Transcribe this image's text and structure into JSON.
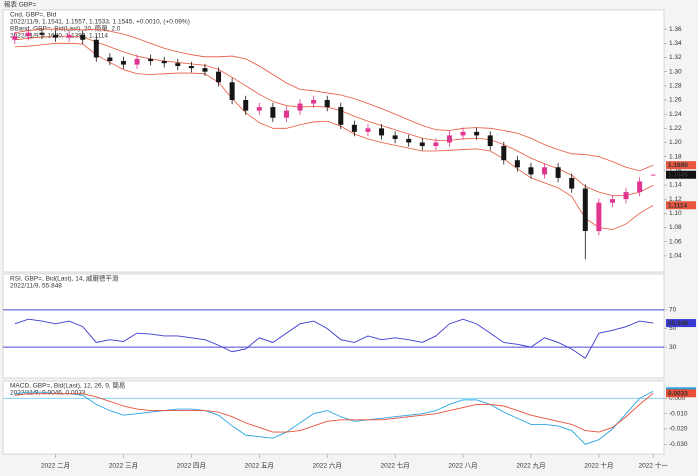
{
  "window_title": "報表 GBP=",
  "chart_data": [
    {
      "type": "candlestick",
      "title": "Cnd, GBP=, Bid",
      "subtitle": "2022/11/9, 1.1541, 1.1557, 1.1533, 1.1545, +0.0010, (+0.09%)",
      "overlay_title": "BBand, GBP=, Bid(Last), 20, 簡單, 2.0",
      "overlay_subtitle": "2022/11/9, 1.1680, 1.1397, 1.1114",
      "categories": [
        null,
        null,
        null,
        null,
        null,
        null,
        null,
        null,
        null,
        null,
        null,
        null,
        null,
        null,
        null,
        null,
        null,
        null,
        null,
        null,
        null,
        null,
        null,
        null,
        null,
        null,
        null,
        null,
        null,
        null,
        null,
        null,
        null,
        null,
        null,
        null,
        null,
        null,
        null,
        null,
        null,
        null,
        null,
        null,
        null,
        null,
        null,
        null
      ],
      "open": [
        1.345,
        1.35,
        1.355,
        1.352,
        1.348,
        1.352,
        1.345,
        1.32,
        1.315,
        1.31,
        1.318,
        1.315,
        1.312,
        1.308,
        1.305,
        1.3,
        1.285,
        1.26,
        1.245,
        1.25,
        1.235,
        1.245,
        1.255,
        1.26,
        1.25,
        1.225,
        1.215,
        1.22,
        1.21,
        1.205,
        1.2,
        1.195,
        1.2,
        1.21,
        1.215,
        1.21,
        1.195,
        1.175,
        1.165,
        1.155,
        1.165,
        1.15,
        1.135,
        1.075,
        1.115,
        1.12,
        1.13,
        1.1541
      ],
      "high": [
        1.356,
        1.361,
        1.361,
        1.358,
        1.358,
        1.358,
        1.351,
        1.326,
        1.321,
        1.324,
        1.324,
        1.321,
        1.318,
        1.314,
        1.311,
        1.306,
        1.291,
        1.266,
        1.256,
        1.256,
        1.251,
        1.261,
        1.266,
        1.266,
        1.256,
        1.231,
        1.226,
        1.226,
        1.216,
        1.211,
        1.206,
        1.206,
        1.216,
        1.221,
        1.221,
        1.216,
        1.201,
        1.181,
        1.171,
        1.171,
        1.171,
        1.156,
        1.141,
        1.121,
        1.126,
        1.136,
        1.151,
        1.1557
      ],
      "low": [
        1.339,
        1.344,
        1.346,
        1.342,
        1.342,
        1.339,
        1.314,
        1.309,
        1.304,
        1.304,
        1.309,
        1.306,
        1.302,
        1.299,
        1.294,
        1.279,
        1.254,
        1.239,
        1.239,
        1.229,
        1.229,
        1.239,
        1.249,
        1.244,
        1.219,
        1.209,
        1.209,
        1.204,
        1.199,
        1.194,
        1.189,
        1.189,
        1.194,
        1.204,
        1.204,
        1.189,
        1.169,
        1.159,
        1.149,
        1.149,
        1.144,
        1.129,
        1.035,
        1.069,
        1.109,
        1.114,
        1.124,
        1.1533
      ],
      "close": [
        1.35,
        1.355,
        1.352,
        1.348,
        1.352,
        1.345,
        1.32,
        1.315,
        1.31,
        1.318,
        1.315,
        1.312,
        1.308,
        1.305,
        1.3,
        1.285,
        1.26,
        1.245,
        1.25,
        1.235,
        1.245,
        1.255,
        1.26,
        1.25,
        1.225,
        1.215,
        1.22,
        1.21,
        1.205,
        1.2,
        1.195,
        1.2,
        1.21,
        1.215,
        1.21,
        1.195,
        1.175,
        1.165,
        1.155,
        1.165,
        1.15,
        1.135,
        1.075,
        1.115,
        1.12,
        1.13,
        1.145,
        1.1545
      ],
      "up_color": "#e0358f",
      "down_color": "#151515",
      "bands": {
        "color": "#e8563f",
        "upper": [
          1.355,
          1.358,
          1.36,
          1.36,
          1.36,
          1.359,
          1.36,
          1.357,
          1.353,
          1.347,
          1.34,
          1.333,
          1.328,
          1.324,
          1.321,
          1.321,
          1.322,
          1.318,
          1.308,
          1.296,
          1.284,
          1.275,
          1.273,
          1.27,
          1.267,
          1.262,
          1.255,
          1.248,
          1.24,
          1.232,
          1.224,
          1.218,
          1.217,
          1.22,
          1.221,
          1.22,
          1.217,
          1.213,
          1.206,
          1.197,
          1.19,
          1.184,
          1.183,
          1.18,
          1.173,
          1.165,
          1.16,
          1.168
        ],
        "middle": [
          1.345,
          1.347,
          1.349,
          1.35,
          1.35,
          1.349,
          1.342,
          1.335,
          1.328,
          1.322,
          1.318,
          1.315,
          1.313,
          1.311,
          1.309,
          1.303,
          1.292,
          1.28,
          1.268,
          1.258,
          1.252,
          1.25,
          1.251,
          1.25,
          1.245,
          1.237,
          1.23,
          1.224,
          1.218,
          1.212,
          1.206,
          1.203,
          1.203,
          1.205,
          1.206,
          1.204,
          1.197,
          1.188,
          1.178,
          1.17,
          1.163,
          1.154,
          1.138,
          1.13,
          1.125,
          1.125,
          1.13,
          1.1397
        ],
        "lower": [
          1.335,
          1.336,
          1.338,
          1.34,
          1.34,
          1.339,
          1.324,
          1.313,
          1.303,
          1.297,
          1.296,
          1.297,
          1.298,
          1.298,
          1.297,
          1.285,
          1.262,
          1.242,
          1.228,
          1.22,
          1.22,
          1.225,
          1.229,
          1.23,
          1.223,
          1.212,
          1.205,
          1.2,
          1.196,
          1.192,
          1.188,
          1.188,
          1.189,
          1.19,
          1.191,
          1.188,
          1.177,
          1.163,
          1.15,
          1.143,
          1.136,
          1.124,
          1.093,
          1.08,
          1.077,
          1.085,
          1.1,
          1.1114
        ]
      },
      "last_labels": {
        "upper": "1.1680",
        "close": "1.1545",
        "lower": "1.1114"
      },
      "ylim": [
        1.02,
        1.38
      ],
      "yticks": [
        1.04,
        1.06,
        1.08,
        {
          "value": 1.1,
          "label": "1.10"
        },
        1.12,
        1.14,
        1.16,
        1.18,
        {
          "value": 1.2,
          "label": "1.20"
        },
        1.22,
        1.24,
        1.26,
        1.28,
        {
          "value": 1.3,
          "label": "1.30"
        },
        1.32,
        1.34,
        1.36
      ]
    },
    {
      "type": "line",
      "title": "RSI, GBP=, Bid(Last), 14, 威爾德平滑",
      "subtitle": "2022/11/9, 55.848",
      "categories": [
        null,
        null,
        null,
        null,
        null,
        null,
        null,
        null,
        null,
        null,
        null,
        null,
        null,
        null,
        null,
        null,
        null,
        null,
        null,
        null,
        null,
        null,
        null,
        null,
        null,
        null,
        null,
        null,
        null,
        null,
        null,
        null,
        null,
        null,
        null,
        null,
        null,
        null,
        null,
        null,
        null,
        null,
        null,
        null,
        null,
        null,
        null,
        null
      ],
      "series": [
        {
          "color": "#3a3ad0",
          "values": [
            55,
            60,
            58,
            55,
            58,
            52,
            35,
            38,
            36,
            45,
            44,
            42,
            42,
            40,
            38,
            32,
            25,
            28,
            40,
            35,
            45,
            55,
            58,
            50,
            38,
            35,
            42,
            38,
            40,
            38,
            35,
            42,
            55,
            60,
            55,
            45,
            35,
            33,
            30,
            40,
            35,
            28,
            18,
            45,
            48,
            52,
            58,
            55.848
          ]
        }
      ],
      "levels": [
        70,
        30
      ],
      "level_color": "#4a4ad8",
      "ylim": [
        0,
        100
      ],
      "yticks": [
        30,
        50,
        70
      ]
    },
    {
      "type": "line",
      "title": "MACD, GBP=, Bid(Last), 12, 26, 9, 簡易",
      "subtitle": "2022/11/9, 0.0046, 0.0033",
      "categories": [
        null,
        null,
        null,
        null,
        null,
        null,
        null,
        null,
        null,
        null,
        null,
        null,
        null,
        null,
        null,
        null,
        null,
        null,
        null,
        null,
        null,
        null,
        null,
        null,
        null,
        null,
        null,
        null,
        null,
        null,
        null,
        null,
        null,
        null,
        null,
        null,
        null,
        null,
        null,
        null,
        null,
        null,
        null,
        null,
        null,
        null,
        null,
        null
      ],
      "xticks": [
        {
          "value": 3,
          "label": "2022 二月"
        },
        {
          "value": 8,
          "label": "2022 三月"
        },
        {
          "value": 13,
          "label": "2022 四月"
        },
        {
          "value": 18,
          "label": "2022 五月"
        },
        {
          "value": 23,
          "label": "2022 六月"
        },
        {
          "value": 28,
          "label": "2022 七月"
        },
        {
          "value": 33,
          "label": "2022 八月"
        },
        {
          "value": 38,
          "label": "2022 九月"
        },
        {
          "value": 43,
          "label": "2022 十月"
        },
        {
          "value": 47,
          "label": "2022 十一"
        }
      ],
      "series": [
        {
          "color": "#2aa6e2",
          "values": [
            0.003,
            0.004,
            0.004,
            0.003,
            0.003,
            0.002,
            -0.004,
            -0.008,
            -0.011,
            -0.01,
            -0.009,
            -0.008,
            -0.007,
            -0.007,
            -0.008,
            -0.011,
            -0.018,
            -0.024,
            -0.025,
            -0.026,
            -0.022,
            -0.016,
            -0.01,
            -0.008,
            -0.012,
            -0.015,
            -0.014,
            -0.013,
            -0.012,
            -0.011,
            -0.01,
            -0.008,
            -0.004,
            -0.001,
            -0.001,
            -0.004,
            -0.009,
            -0.013,
            -0.017,
            -0.017,
            -0.018,
            -0.021,
            -0.03,
            -0.027,
            -0.02,
            -0.01,
            0,
            0.0046
          ]
        },
        {
          "color": "#e8503a",
          "values": [
            0.002,
            0.003,
            0.003,
            0.003,
            0.003,
            0.003,
            0.001,
            -0.002,
            -0.005,
            -0.007,
            -0.008,
            -0.008,
            -0.008,
            -0.008,
            -0.008,
            -0.009,
            -0.012,
            -0.016,
            -0.019,
            -0.022,
            -0.022,
            -0.021,
            -0.018,
            -0.015,
            -0.014,
            -0.014,
            -0.014,
            -0.014,
            -0.013,
            -0.012,
            -0.011,
            -0.01,
            -0.008,
            -0.006,
            -0.004,
            -0.004,
            -0.005,
            -0.008,
            -0.011,
            -0.013,
            -0.015,
            -0.017,
            -0.021,
            -0.022,
            -0.019,
            -0.012,
            -0.004,
            0.0033
          ]
        }
      ],
      "levels": [
        0
      ],
      "level_color": "#86d3f0",
      "ylim": [
        -0.035,
        0.01
      ],
      "yticks": [
        {
          "value": 0,
          "label": "0.000"
        },
        {
          "value": -0.01,
          "label": "-0.010"
        },
        {
          "value": -0.02,
          "label": "-0.020"
        },
        {
          "value": -0.03,
          "label": "-0.030"
        }
      ]
    }
  ]
}
